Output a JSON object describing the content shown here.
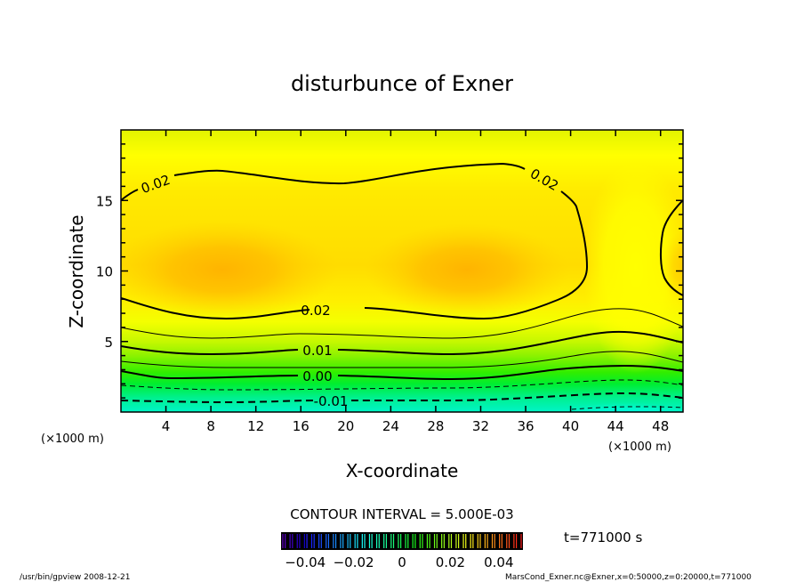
{
  "chart_data": {
    "type": "contour",
    "title": "disturbunce of Exner",
    "xlabel": "X-coordinate",
    "ylabel": "Z-coordinate",
    "x_unit_label": "(×1000 m)",
    "x_unit_label_right": "(×1000 m)",
    "xlim": [
      0,
      50
    ],
    "ylim": [
      0,
      20
    ],
    "xticks": [
      4,
      8,
      12,
      16,
      20,
      24,
      28,
      32,
      36,
      40,
      44,
      48
    ],
    "yticks": [
      5,
      10,
      15
    ],
    "contour_labels": [
      {
        "text": "0.02",
        "level": 0.02
      },
      {
        "text": "0.02",
        "level": 0.02
      },
      {
        "text": "0.02",
        "level": 0.02
      },
      {
        "text": "0.01",
        "level": 0.01
      },
      {
        "text": "0.00",
        "level": 0.0
      },
      {
        "text": "-0.01",
        "level": -0.01
      }
    ],
    "contour_interval_text": "CONTOUR INTERVAL = 5.000E-03",
    "contour_interval": 0.005,
    "maxima": [
      {
        "x": 8.5,
        "z": 10
      },
      {
        "x": 31,
        "z": 10
      }
    ],
    "colorbar": {
      "min": -0.05,
      "max": 0.05,
      "ticks": [
        "-0.04",
        "-0.02",
        "0",
        "0.02",
        "0.04"
      ]
    },
    "time_text": "t=771000 s"
  },
  "footer": {
    "left": "/usr/bin/gpview   2008-12-21",
    "right": "MarsCond_Exner.nc@Exner,x=0:50000,z=0:20000,t=771000"
  }
}
